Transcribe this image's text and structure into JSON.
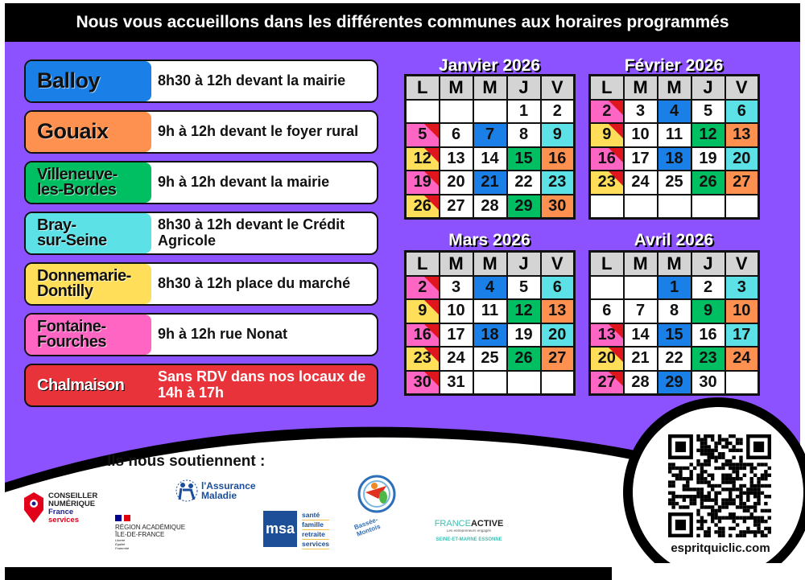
{
  "header": {
    "title": "Nous vous accueillons dans les différentes communes aux horaires programmés"
  },
  "colors": {
    "background": "#8c52ff",
    "blue": "#1a7fe6",
    "orange": "#ff9150",
    "green": "#00bf63",
    "cyan": "#5ce1e6",
    "yellow": "#ffde59",
    "pink": "#ff66c4",
    "red": "#e0161e"
  },
  "communes": [
    {
      "name": "Balloy",
      "schedule": "8h30 à 12h devant la mairie",
      "color": "#1a7fe6"
    },
    {
      "name": "Gouaix",
      "schedule": "9h à 12h devant le foyer rural",
      "color": "#ff9150"
    },
    {
      "name": "Villeneuve-les-Bordes",
      "schedule": "9h à 12h devant la mairie",
      "color": "#00bf63"
    },
    {
      "name": "Bray-sur-Seine",
      "schedule": "8h30 à 12h devant le Crédit Agricole",
      "color": "#5ce1e6"
    },
    {
      "name": "Donnemarie-Dontilly",
      "schedule": "8h30 à 12h place du marché",
      "color": "#ffde59"
    },
    {
      "name": "Fontaine-Fourches",
      "schedule": "9h à 12h rue Nonat",
      "color": "#ff66c4"
    },
    {
      "name": "Chalmaison",
      "schedule": "Sans RDV dans nos locaux de 14h à 17h",
      "color": "#e0161e"
    }
  ],
  "weekdays": [
    "L",
    "M",
    "M",
    "J",
    "V"
  ],
  "calendars": [
    {
      "title": "Janvier 2026",
      "rows": [
        [
          [
            "",
            ""
          ],
          [
            "",
            ""
          ],
          [
            "",
            ""
          ],
          [
            "1",
            ""
          ],
          [
            "2",
            ""
          ]
        ],
        [
          [
            "5",
            "pink+red"
          ],
          [
            "6",
            ""
          ],
          [
            "7",
            "blue"
          ],
          [
            "8",
            ""
          ],
          [
            "9",
            "cyan"
          ]
        ],
        [
          [
            "12",
            "yellow+red"
          ],
          [
            "13",
            ""
          ],
          [
            "14",
            ""
          ],
          [
            "15",
            "green"
          ],
          [
            "16",
            "orange"
          ]
        ],
        [
          [
            "19",
            "pink+red"
          ],
          [
            "20",
            ""
          ],
          [
            "21",
            "blue"
          ],
          [
            "22",
            ""
          ],
          [
            "23",
            "cyan"
          ]
        ],
        [
          [
            "26",
            "yellow+red"
          ],
          [
            "27",
            ""
          ],
          [
            "28",
            ""
          ],
          [
            "29",
            "green"
          ],
          [
            "30",
            "orange"
          ]
        ]
      ]
    },
    {
      "title": "Février 2026",
      "rows": [
        [
          [
            "2",
            "pink+red"
          ],
          [
            "3",
            ""
          ],
          [
            "4",
            "blue"
          ],
          [
            "5",
            ""
          ],
          [
            "6",
            "cyan"
          ]
        ],
        [
          [
            "9",
            "yellow+red"
          ],
          [
            "10",
            ""
          ],
          [
            "11",
            ""
          ],
          [
            "12",
            "green"
          ],
          [
            "13",
            "orange"
          ]
        ],
        [
          [
            "16",
            "pink+red"
          ],
          [
            "17",
            ""
          ],
          [
            "18",
            "blue"
          ],
          [
            "19",
            ""
          ],
          [
            "20",
            "cyan"
          ]
        ],
        [
          [
            "23",
            "yellow+red"
          ],
          [
            "24",
            ""
          ],
          [
            "25",
            ""
          ],
          [
            "26",
            "green"
          ],
          [
            "27",
            "orange"
          ]
        ],
        [
          [
            "",
            ""
          ],
          [
            "",
            ""
          ],
          [
            "",
            ""
          ],
          [
            "",
            ""
          ],
          [
            "",
            ""
          ]
        ]
      ]
    },
    {
      "title": "Mars 2026",
      "rows": [
        [
          [
            "2",
            "pink+red"
          ],
          [
            "3",
            ""
          ],
          [
            "4",
            "blue"
          ],
          [
            "5",
            ""
          ],
          [
            "6",
            "cyan"
          ]
        ],
        [
          [
            "9",
            "yellow+red"
          ],
          [
            "10",
            ""
          ],
          [
            "11",
            ""
          ],
          [
            "12",
            "green"
          ],
          [
            "13",
            "orange"
          ]
        ],
        [
          [
            "16",
            "pink+red"
          ],
          [
            "17",
            ""
          ],
          [
            "18",
            "blue"
          ],
          [
            "19",
            ""
          ],
          [
            "20",
            "cyan"
          ]
        ],
        [
          [
            "23",
            "yellow+red"
          ],
          [
            "24",
            ""
          ],
          [
            "25",
            ""
          ],
          [
            "26",
            "green"
          ],
          [
            "27",
            "orange"
          ]
        ],
        [
          [
            "30",
            "pink+red"
          ],
          [
            "31",
            ""
          ],
          [
            "",
            ""
          ],
          [
            "",
            ""
          ],
          [
            "",
            ""
          ]
        ]
      ]
    },
    {
      "title": "Avril 2026",
      "rows": [
        [
          [
            "",
            ""
          ],
          [
            "",
            ""
          ],
          [
            "1",
            "blue"
          ],
          [
            "2",
            ""
          ],
          [
            "3",
            "cyan"
          ]
        ],
        [
          [
            "6",
            ""
          ],
          [
            "7",
            ""
          ],
          [
            "8",
            ""
          ],
          [
            "9",
            "green"
          ],
          [
            "10",
            "orange"
          ]
        ],
        [
          [
            "13",
            "pink+red"
          ],
          [
            "14",
            ""
          ],
          [
            "15",
            "blue"
          ],
          [
            "16",
            ""
          ],
          [
            "17",
            "cyan"
          ]
        ],
        [
          [
            "20",
            "yellow+red"
          ],
          [
            "21",
            ""
          ],
          [
            "22",
            ""
          ],
          [
            "23",
            "green"
          ],
          [
            "24",
            "orange"
          ]
        ],
        [
          [
            "27",
            "pink+red"
          ],
          [
            "28",
            ""
          ],
          [
            "29",
            "blue"
          ],
          [
            "30",
            ""
          ],
          [
            "",
            ""
          ]
        ]
      ]
    }
  ],
  "supporters": {
    "heading": "Ils nous soutiennent :",
    "conseiller": {
      "line1": "CONSEILLER",
      "line2": "NUMÉRIQUE",
      "line3": "France",
      "line4": "services"
    },
    "region": {
      "line1": "RÉGION ACADÉMIQUE",
      "line2": "ÎLE-DE-FRANCE",
      "motto1": "Liberté",
      "motto2": "Égalité",
      "motto3": "Fraternité"
    },
    "assurance": {
      "line1": "l'Assurance",
      "line2": "Maladie"
    },
    "msa": {
      "logo": "msa",
      "items": [
        "santé",
        "famille",
        "retraite",
        "services"
      ]
    },
    "bassee": {
      "name": "Bassée-Montois"
    },
    "franceactive": {
      "name1": "FRANCE",
      "name2": "ACTIVE",
      "tagline": "Les entrepreneurs engagés",
      "region": "SEINE-ET-MARNE ESSONNE"
    }
  },
  "qr": {
    "url": "espritquiclic.com"
  }
}
